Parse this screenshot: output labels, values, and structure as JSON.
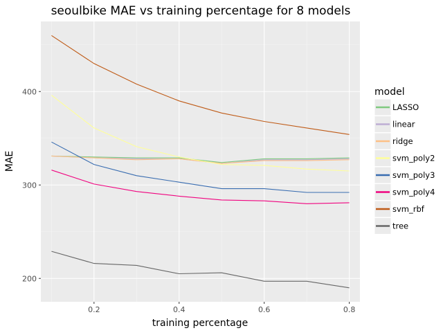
{
  "chart_data": {
    "type": "line",
    "title": "seoulbike MAE vs training percentage for 8 models",
    "xlabel": "training percentage",
    "ylabel": "MAE",
    "xlim": [
      0.075,
      0.825
    ],
    "ylim": [
      175,
      475
    ],
    "x_ticks": [
      0.2,
      0.4,
      0.6,
      0.8
    ],
    "x_tick_labels": [
      "0.2",
      "0.4",
      "0.6",
      "0.8"
    ],
    "y_ticks": [
      200,
      300,
      400
    ],
    "y_tick_labels": [
      "200",
      "300",
      "400"
    ],
    "grid": true,
    "legend": {
      "title": "model",
      "position": "right"
    },
    "x": [
      0.1,
      0.2,
      0.3,
      0.4,
      0.5,
      0.6,
      0.7,
      0.8
    ],
    "series": [
      {
        "name": "LASSO",
        "color": "#7fc97f",
        "values": [
          331,
          330,
          329,
          329,
          324,
          328,
          328,
          329
        ]
      },
      {
        "name": "linear",
        "color": "#beaed4",
        "values": [
          331,
          329,
          328,
          328,
          323,
          327,
          327,
          328
        ]
      },
      {
        "name": "ridge",
        "color": "#fdc086",
        "values": [
          331,
          329,
          327,
          328,
          323,
          326,
          326,
          327
        ]
      },
      {
        "name": "svm_poly2",
        "color": "#ffff99",
        "values": [
          396,
          361,
          341,
          330,
          322,
          321,
          317,
          315
        ]
      },
      {
        "name": "svm_poly3",
        "color": "#386cb0",
        "values": [
          346,
          322,
          310,
          303,
          296,
          296,
          292,
          292
        ]
      },
      {
        "name": "svm_poly4",
        "color": "#f0027f",
        "values": [
          316,
          301,
          293,
          288,
          284,
          283,
          280,
          281
        ]
      },
      {
        "name": "svm_rbf",
        "color": "#bf5b17",
        "values": [
          460,
          430,
          408,
          390,
          377,
          368,
          361,
          354
        ]
      },
      {
        "name": "tree",
        "color": "#666666",
        "values": [
          229,
          216,
          214,
          205,
          206,
          197,
          197,
          190
        ]
      }
    ]
  }
}
